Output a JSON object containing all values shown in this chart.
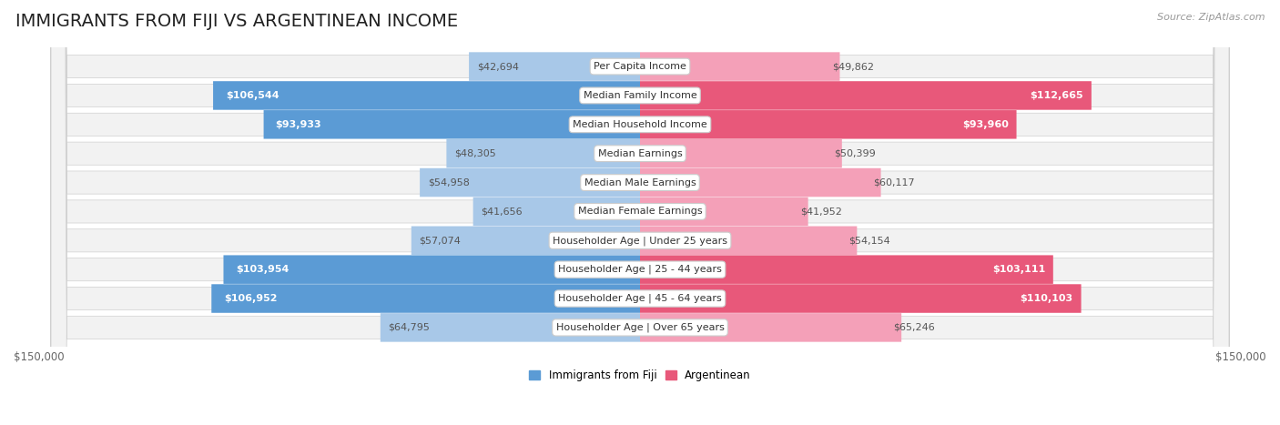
{
  "title": "IMMIGRANTS FROM FIJI VS ARGENTINEAN INCOME",
  "source": "Source: ZipAtlas.com",
  "categories": [
    "Per Capita Income",
    "Median Family Income",
    "Median Household Income",
    "Median Earnings",
    "Median Male Earnings",
    "Median Female Earnings",
    "Householder Age | Under 25 years",
    "Householder Age | 25 - 44 years",
    "Householder Age | 45 - 64 years",
    "Householder Age | Over 65 years"
  ],
  "fiji_values": [
    42694,
    106544,
    93933,
    48305,
    54958,
    41656,
    57074,
    103954,
    106952,
    64795
  ],
  "arg_values": [
    49862,
    112665,
    93960,
    50399,
    60117,
    41952,
    54154,
    103111,
    110103,
    65246
  ],
  "fiji_labels": [
    "$42,694",
    "$106,544",
    "$93,933",
    "$48,305",
    "$54,958",
    "$41,656",
    "$57,074",
    "$103,954",
    "$106,952",
    "$64,795"
  ],
  "arg_labels": [
    "$49,862",
    "$112,665",
    "$93,960",
    "$50,399",
    "$60,117",
    "$41,952",
    "$54,154",
    "$103,111",
    "$110,103",
    "$65,246"
  ],
  "fiji_color_light": "#a8c8e8",
  "fiji_color_dark": "#5b9bd5",
  "arg_color_light": "#f4a0b8",
  "arg_color_dark": "#e8587a",
  "threshold": 75000,
  "max_val": 150000,
  "legend_fiji": "Immigrants from Fiji",
  "legend_arg": "Argentinean",
  "bg_color": "#ffffff",
  "row_color_light": "#f0f0f0",
  "row_color_dark": "#e8e8e8",
  "bar_height": 0.52,
  "title_fontsize": 14,
  "label_fontsize": 8,
  "axis_fontsize": 8.5,
  "category_fontsize": 8
}
